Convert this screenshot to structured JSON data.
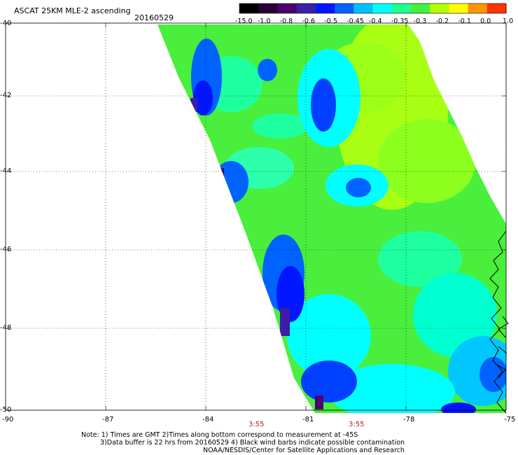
{
  "header": {
    "title": "ASCAT 25KM MLE-2 ascending",
    "date": "20160529"
  },
  "colorbar": {
    "labels": [
      "-15.0",
      "-1.0",
      "-0.8",
      "-0.6",
      "-0.5",
      "-0.45",
      "-0.4",
      "-0.35",
      "-0.3",
      "-0.2",
      "-0.1",
      "0.0",
      "1.0"
    ],
    "colors": [
      "#000000",
      "#2a0036",
      "#4a006e",
      "#3c1ea8",
      "#0016ff",
      "#0063ff",
      "#00bfff",
      "#00ffff",
      "#1eff8c",
      "#46f03c",
      "#b4ff00",
      "#ffff00",
      "#ff9600",
      "#ff3200"
    ]
  },
  "map": {
    "lat_labels": [
      "-40",
      "-42",
      "-44",
      "-46",
      "-48",
      "-50"
    ],
    "lon_labels": [
      "-90",
      "-87",
      "-84",
      "-81",
      "-78",
      "-75"
    ],
    "time_labels": [
      "3:55",
      "3:55"
    ]
  },
  "notes": {
    "line1": "Note: 1) Times are GMT 2)Times along bottom correspond to measurement at -45S",
    "line2": "3)Data buffer is 22 hrs from 20160529 4) Black wind barbs indicate possible contamination",
    "line3": "NOAA/NESDIS/Center for Satellite Applications and Research"
  }
}
